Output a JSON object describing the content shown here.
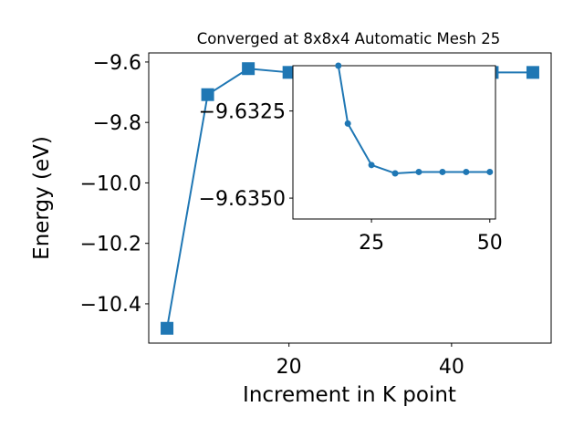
{
  "chart_data": [
    {
      "type": "line",
      "title": "Converged at 8x8x4 Automatic Mesh 25",
      "xlabel": "Increment in K point",
      "ylabel": "Energy (eV)",
      "xlim": [
        2.75,
        52.25
      ],
      "ylim": [
        -10.53,
        -9.57
      ],
      "xticks": [
        20,
        40
      ],
      "xtick_labels": [
        "20",
        "40"
      ],
      "yticks": [
        -9.6,
        -9.8,
        -10.0,
        -10.2,
        -10.4
      ],
      "ytick_labels": [
        "−9.6",
        "−9.8",
        "−10.0",
        "−10.2",
        "−10.4"
      ],
      "marker": "square",
      "color": "#1f77b4",
      "x": [
        5,
        10,
        15,
        20,
        25,
        30,
        35,
        40,
        45,
        50
      ],
      "y": [
        -10.481,
        -9.708,
        -9.622,
        -9.63435,
        -9.63453,
        -9.63453,
        -9.63453,
        -9.63453,
        -9.63453,
        -9.6345
      ]
    },
    {
      "type": "line",
      "title": "",
      "xlabel": "",
      "ylabel": "",
      "xlim": [
        8.4,
        51.2
      ],
      "ylim": [
        -9.6356,
        -9.6312
      ],
      "xticks": [
        25,
        50
      ],
      "xtick_labels": [
        "25",
        "50"
      ],
      "yticks": [
        -9.635,
        -9.6325
      ],
      "ytick_labels": [
        "−9.6350",
        "−9.6325"
      ],
      "marker": "circle",
      "color": "#1f77b4",
      "x": [
        18,
        20,
        25,
        30,
        35,
        40,
        45,
        50
      ],
      "y": [
        -9.6312,
        -9.63286,
        -9.63405,
        -9.63429,
        -9.63425,
        -9.63425,
        -9.63425,
        -9.63425
      ]
    }
  ]
}
